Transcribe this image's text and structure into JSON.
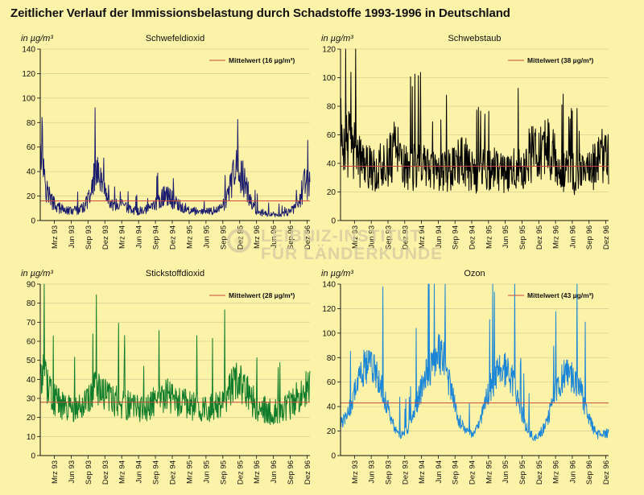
{
  "title": "Zeitlicher Verlauf der Immissionsbelastung durch Schadstoffe 1993-1996 in Deutschland",
  "watermark": {
    "symbol": "©",
    "lines": [
      "LEIBNIZ-INSTITUT",
      "FÜR LÄNDERKUNDE"
    ]
  },
  "colors": {
    "background": "#fdf3a8",
    "mean_line": "#c8483a",
    "grid": "#d9cf93",
    "axis": "#111111"
  },
  "chart_data": [
    {
      "id": "so2",
      "type": "line",
      "title": "Schwefeldioxid",
      "ylabel": "in µg/m³",
      "ylim": [
        0,
        140
      ],
      "yticks": [
        0,
        20,
        40,
        60,
        80,
        100,
        120,
        140
      ],
      "x_tick_labels": [
        "Mrz 93",
        "Jun 93",
        "Sep 93",
        "Dez 93",
        "Mrz 94",
        "Jun 94",
        "Sep 94",
        "Dez 94",
        "Mrz 95",
        "Jun 95",
        "Sep 95",
        "Dez 95",
        "Mrz 96",
        "Jun 96",
        "Sep 96",
        "Dez 96"
      ],
      "x_range": [
        "1993-01",
        "1996-12"
      ],
      "series_color": "#1b1d6e",
      "mean": 16,
      "legend": "Mittelwert (16 µg/m³)",
      "series": [
        {
          "x": [
            "1993-01",
            "1993-02",
            "1993-03",
            "1993-04",
            "1993-05",
            "1993-06",
            "1993-07",
            "1993-08",
            "1993-09",
            "1993-10",
            "1993-11",
            "1993-12",
            "1994-01",
            "1994-02",
            "1994-03",
            "1994-04",
            "1994-05",
            "1994-06",
            "1994-07",
            "1994-08",
            "1994-09",
            "1994-10",
            "1994-11",
            "1994-12",
            "1995-01",
            "1995-02",
            "1995-03",
            "1995-04",
            "1995-05",
            "1995-06",
            "1995-07",
            "1995-08",
            "1995-09",
            "1995-10",
            "1995-11",
            "1995-12",
            "1996-01",
            "1996-02",
            "1996-03",
            "1996-04",
            "1996-05",
            "1996-06",
            "1996-07",
            "1996-08",
            "1996-09",
            "1996-10",
            "1996-11",
            "1996-12"
          ],
          "values": [
            80,
            28,
            16,
            11,
            9,
            8,
            8,
            9,
            12,
            20,
            45,
            26,
            16,
            12,
            13,
            11,
            9,
            8,
            8,
            9,
            12,
            16,
            20,
            19,
            15,
            11,
            10,
            8,
            7,
            7,
            7,
            8,
            10,
            15,
            30,
            42,
            36,
            22,
            10,
            7,
            6,
            5,
            5,
            5,
            7,
            9,
            14,
            30
          ]
        }
      ]
    },
    {
      "id": "tsp",
      "type": "line",
      "title": "Schwebstaub",
      "ylabel": "in µg/m³",
      "ylim": [
        0,
        120
      ],
      "yticks": [
        0,
        20,
        40,
        60,
        80,
        100,
        120
      ],
      "x_tick_labels": [
        "Mrz 93",
        "Jun 93",
        "Sep 93",
        "Dez 93",
        "Mrz 94",
        "Jun 94",
        "Sep 94",
        "Dez 94",
        "Mrz 95",
        "Jun 95",
        "Sep 95",
        "Dez 95",
        "Mrz 96",
        "Jun 96",
        "Sep 96",
        "Dez 96"
      ],
      "x_range": [
        "1993-01",
        "1996-12"
      ],
      "series_color": "#000000",
      "mean": 38,
      "legend": "Mittelwert (38 µg/m³)",
      "series": [
        {
          "x": [
            "1993-01",
            "1993-02",
            "1993-03",
            "1993-04",
            "1993-05",
            "1993-06",
            "1993-07",
            "1993-08",
            "1993-09",
            "1993-10",
            "1993-11",
            "1993-12",
            "1994-01",
            "1994-02",
            "1994-03",
            "1994-04",
            "1994-05",
            "1994-06",
            "1994-07",
            "1994-08",
            "1994-09",
            "1994-10",
            "1994-11",
            "1994-12",
            "1995-01",
            "1995-02",
            "1995-03",
            "1995-04",
            "1995-05",
            "1995-06",
            "1995-07",
            "1995-08",
            "1995-09",
            "1995-10",
            "1995-11",
            "1995-12",
            "1996-01",
            "1996-02",
            "1996-03",
            "1996-04",
            "1996-05",
            "1996-06",
            "1996-07",
            "1996-08",
            "1996-09",
            "1996-10",
            "1996-11",
            "1996-12"
          ],
          "values": [
            62,
            55,
            52,
            44,
            40,
            38,
            36,
            37,
            40,
            46,
            52,
            42,
            37,
            38,
            40,
            40,
            37,
            36,
            34,
            35,
            36,
            40,
            44,
            37,
            34,
            35,
            38,
            38,
            36,
            34,
            34,
            35,
            36,
            40,
            46,
            48,
            46,
            50,
            46,
            38,
            35,
            33,
            33,
            33,
            34,
            36,
            40,
            45
          ]
        }
      ]
    },
    {
      "id": "no2",
      "type": "line",
      "title": "Stickstoffdioxid",
      "ylabel": "in µg/m³",
      "ylim": [
        0,
        90
      ],
      "yticks": [
        0,
        10,
        20,
        30,
        40,
        50,
        60,
        70,
        80,
        90
      ],
      "x_tick_labels": [
        "Mrz 93",
        "Jun 93",
        "Sep 93",
        "Dez 93",
        "Mrz 94",
        "Jun 94",
        "Sep 94",
        "Dez 94",
        "Mrz 95",
        "Jun 95",
        "Sep 95",
        "Dez 95",
        "Mrz 96",
        "Jun 96",
        "Sep 96",
        "Dez 96"
      ],
      "x_range": [
        "1993-01",
        "1996-12"
      ],
      "series_color": "#0e7c2a",
      "mean": 28,
      "legend": "Mittelwert (28 µg/m³)",
      "series": [
        {
          "x": [
            "1993-01",
            "1993-02",
            "1993-03",
            "1993-04",
            "1993-05",
            "1993-06",
            "1993-07",
            "1993-08",
            "1993-09",
            "1993-10",
            "1993-11",
            "1993-12",
            "1994-01",
            "1994-02",
            "1994-03",
            "1994-04",
            "1994-05",
            "1994-06",
            "1994-07",
            "1994-08",
            "1994-09",
            "1994-10",
            "1994-11",
            "1994-12",
            "1995-01",
            "1995-02",
            "1995-03",
            "1995-04",
            "1995-05",
            "1995-06",
            "1995-07",
            "1995-08",
            "1995-09",
            "1995-10",
            "1995-11",
            "1995-12",
            "1996-01",
            "1996-02",
            "1996-03",
            "1996-04",
            "1996-05",
            "1996-06",
            "1996-07",
            "1996-08",
            "1996-09",
            "1996-10",
            "1996-11",
            "1996-12"
          ],
          "values": [
            45,
            38,
            33,
            28,
            26,
            25,
            24,
            25,
            27,
            31,
            35,
            33,
            30,
            29,
            28,
            27,
            26,
            25,
            25,
            25,
            27,
            30,
            32,
            31,
            29,
            27,
            27,
            26,
            25,
            24,
            25,
            25,
            27,
            31,
            36,
            38,
            36,
            33,
            28,
            25,
            24,
            23,
            23,
            24,
            26,
            28,
            31,
            35
          ]
        }
      ]
    },
    {
      "id": "o3",
      "type": "line",
      "title": "Ozon",
      "ylabel": "in µg/m³",
      "ylim": [
        0,
        140
      ],
      "yticks": [
        0,
        20,
        40,
        60,
        80,
        100,
        120,
        140
      ],
      "x_tick_labels": [
        "Mrz 93",
        "Jun 93",
        "Sep 93",
        "Dez 93",
        "Mrz 94",
        "Jun 94",
        "Sep 94",
        "Dez 94",
        "Mrz 95",
        "Jun 95",
        "Sep 95",
        "Dez 95",
        "Mrz 96",
        "Jun 96",
        "Sep 96",
        "Dez 96"
      ],
      "x_range": [
        "1993-01",
        "1996-12"
      ],
      "series_color": "#1a86d8",
      "mean": 43,
      "legend": "Mittelwert (43 µg/m³)",
      "series": [
        {
          "x": [
            "1993-01",
            "1993-02",
            "1993-03",
            "1993-04",
            "1993-05",
            "1993-06",
            "1993-07",
            "1993-08",
            "1993-09",
            "1993-10",
            "1993-11",
            "1993-12",
            "1994-01",
            "1994-02",
            "1994-03",
            "1994-04",
            "1994-05",
            "1994-06",
            "1994-07",
            "1994-08",
            "1994-09",
            "1994-10",
            "1994-11",
            "1994-12",
            "1995-01",
            "1995-02",
            "1995-03",
            "1995-04",
            "1995-05",
            "1995-06",
            "1995-07",
            "1995-08",
            "1995-09",
            "1995-10",
            "1995-11",
            "1995-12",
            "1996-01",
            "1996-02",
            "1996-03",
            "1996-04",
            "1996-05",
            "1996-06",
            "1996-07",
            "1996-08",
            "1996-09",
            "1996-10",
            "1996-11",
            "1996-12"
          ],
          "values": [
            25,
            32,
            45,
            60,
            70,
            74,
            70,
            60,
            45,
            30,
            20,
            17,
            22,
            33,
            48,
            62,
            72,
            80,
            82,
            70,
            50,
            32,
            22,
            18,
            20,
            30,
            44,
            58,
            68,
            70,
            68,
            58,
            42,
            27,
            17,
            15,
            20,
            28,
            42,
            56,
            64,
            66,
            62,
            52,
            38,
            24,
            17,
            18
          ]
        }
      ]
    }
  ]
}
